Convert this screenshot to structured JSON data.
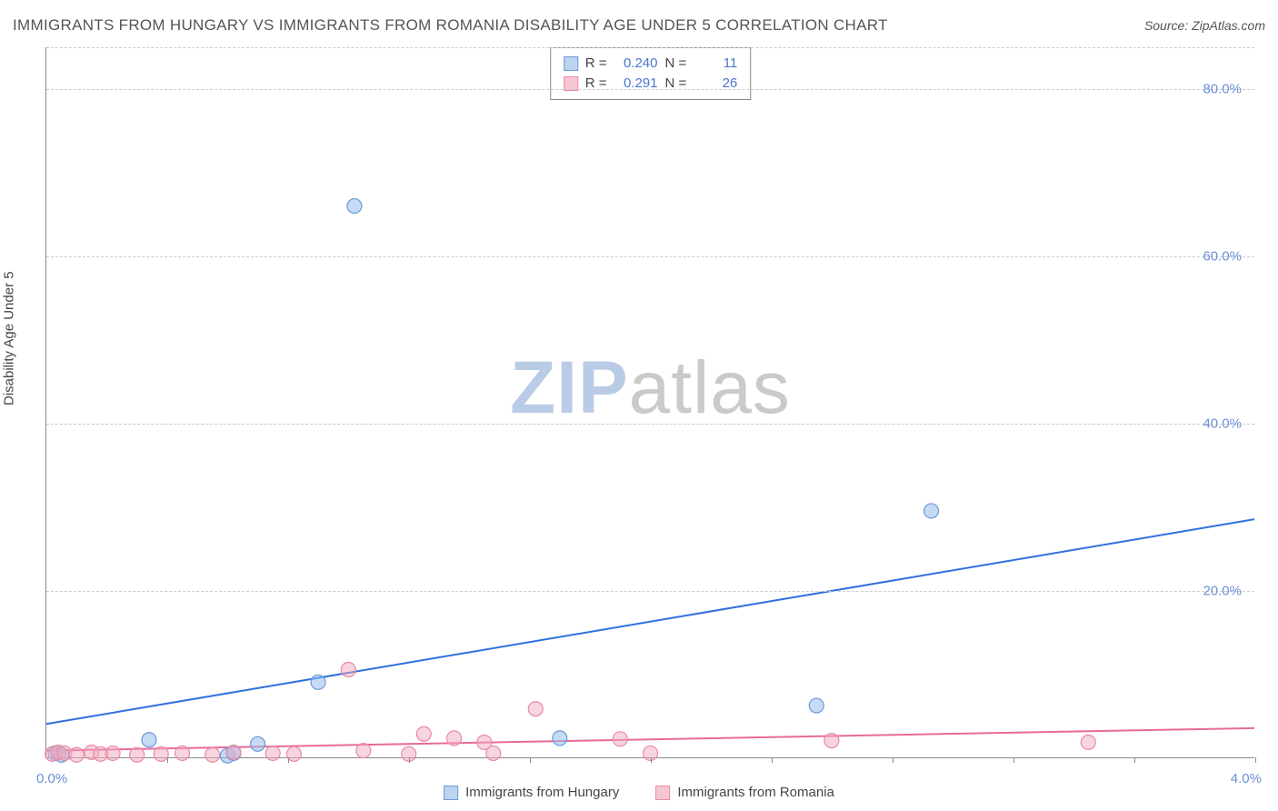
{
  "title": "IMMIGRANTS FROM HUNGARY VS IMMIGRANTS FROM ROMANIA DISABILITY AGE UNDER 5 CORRELATION CHART",
  "source_label": "Source: ",
  "source_site": "ZipAtlas.com",
  "watermark_zip": "ZIP",
  "watermark_atlas": "atlas",
  "y_axis_title": "Disability Age Under 5",
  "chart": {
    "type": "scatter",
    "xlim": [
      0.0,
      4.0
    ],
    "ylim": [
      0.0,
      85.0
    ],
    "x_origin_label": "0.0%",
    "x_max_label": "4.0%",
    "y_ticks": [
      20.0,
      40.0,
      60.0,
      80.0
    ],
    "y_tick_labels": [
      "20.0%",
      "40.0%",
      "60.0%",
      "80.0%"
    ],
    "x_minor_ticks": [
      0.4,
      0.8,
      1.2,
      1.6,
      2.0,
      2.4,
      2.8,
      3.2,
      3.6,
      4.0
    ],
    "grid_color": "#cccccc",
    "axis_color": "#888888",
    "background_color": "#ffffff",
    "marker_radius": 8,
    "marker_radius_small": 6,
    "series": [
      {
        "name": "Immigrants from Hungary",
        "swatch_fill": "#bcd4f0",
        "swatch_border": "#6a9ad8",
        "marker_fill": "rgba(150,190,235,0.55)",
        "marker_stroke": "#6a9ad8",
        "line_color": "#2f6fe0",
        "line_width": 2,
        "R_label": "R =",
        "R": "0.240",
        "N_label": "N =",
        "N": "11",
        "trend": {
          "x1": 0.0,
          "y1": 4.0,
          "x2": 4.0,
          "y2": 28.5
        },
        "points": [
          {
            "x": 0.03,
            "y": 0.5
          },
          {
            "x": 0.05,
            "y": 0.3
          },
          {
            "x": 0.34,
            "y": 2.1
          },
          {
            "x": 0.6,
            "y": 0.2
          },
          {
            "x": 0.62,
            "y": 0.5
          },
          {
            "x": 0.7,
            "y": 1.6
          },
          {
            "x": 0.9,
            "y": 9.0
          },
          {
            "x": 1.02,
            "y": 66.0
          },
          {
            "x": 1.7,
            "y": 2.3
          },
          {
            "x": 2.55,
            "y": 6.2
          },
          {
            "x": 2.93,
            "y": 29.5
          }
        ]
      },
      {
        "name": "Immigrants from Romania",
        "swatch_fill": "#f6c7d3",
        "swatch_border": "#e98aa5",
        "marker_fill": "rgba(240,170,190,0.5)",
        "marker_stroke": "#e98aa5",
        "line_color": "#e86a97",
        "line_width": 2,
        "R_label": "R =",
        "R": "0.291",
        "N_label": "N =",
        "N": "26",
        "trend": {
          "x1": 0.0,
          "y1": 0.8,
          "x2": 4.0,
          "y2": 3.5
        },
        "points": [
          {
            "x": 0.02,
            "y": 0.4
          },
          {
            "x": 0.04,
            "y": 0.6
          },
          {
            "x": 0.06,
            "y": 0.5
          },
          {
            "x": 0.1,
            "y": 0.3
          },
          {
            "x": 0.15,
            "y": 0.6
          },
          {
            "x": 0.18,
            "y": 0.4
          },
          {
            "x": 0.22,
            "y": 0.5
          },
          {
            "x": 0.3,
            "y": 0.3
          },
          {
            "x": 0.38,
            "y": 0.4
          },
          {
            "x": 0.45,
            "y": 0.5
          },
          {
            "x": 0.55,
            "y": 0.3
          },
          {
            "x": 0.62,
            "y": 0.6
          },
          {
            "x": 0.75,
            "y": 0.5
          },
          {
            "x": 0.82,
            "y": 0.4
          },
          {
            "x": 1.0,
            "y": 10.5
          },
          {
            "x": 1.05,
            "y": 0.8
          },
          {
            "x": 1.2,
            "y": 0.4
          },
          {
            "x": 1.25,
            "y": 2.8
          },
          {
            "x": 1.35,
            "y": 2.3
          },
          {
            "x": 1.45,
            "y": 1.8
          },
          {
            "x": 1.48,
            "y": 0.5
          },
          {
            "x": 1.62,
            "y": 5.8
          },
          {
            "x": 1.9,
            "y": 2.2
          },
          {
            "x": 2.0,
            "y": 0.5
          },
          {
            "x": 2.6,
            "y": 2.0
          },
          {
            "x": 3.45,
            "y": 1.8
          }
        ]
      }
    ]
  },
  "title_fontsize": 17,
  "label_fontsize": 15,
  "tick_color": "#6b8fd6",
  "text_color": "#555555",
  "stat_value_color": "#4a76d0"
}
